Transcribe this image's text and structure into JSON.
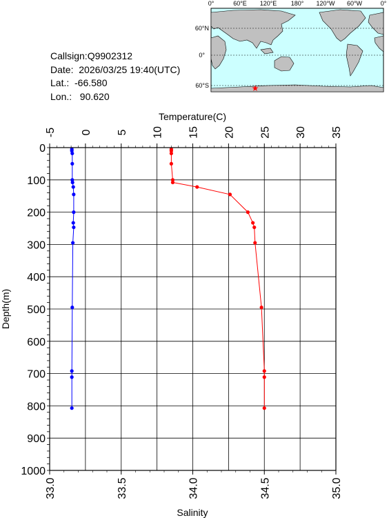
{
  "info": {
    "callsign": "Callsign:Q9902312",
    "date": "Date:  2026/03/25 19:40(UTC)",
    "lat": "Lat.:  -66.580",
    "lon": "Lon.:   90.620"
  },
  "map": {
    "lon_ticks": [
      "0°",
      "60°E",
      "120°E",
      "180°",
      "120°W",
      "60°W",
      "0°"
    ],
    "lat_ticks": [
      "60°N",
      "0°",
      "60°S"
    ],
    "ocean_color": "#ccffff",
    "land_color": "#c0c0c0",
    "marker": {
      "lon": 90.62,
      "lat": -66.58,
      "color": "#ff0000",
      "icon": "star-icon"
    }
  },
  "chart_data": {
    "type": "line",
    "ylabel": "Depth(m)",
    "y_range": [
      0,
      1000
    ],
    "y_ticks": [
      0,
      100,
      200,
      300,
      400,
      500,
      600,
      700,
      800,
      900,
      1000
    ],
    "y_reversed": true,
    "grid": true,
    "top_axis": {
      "label": "Temperature(C)",
      "range": [
        -5,
        35
      ],
      "ticks": [
        "-5",
        "0",
        "5",
        "10",
        "15",
        "20",
        "25",
        "30",
        "35"
      ]
    },
    "bottom_axis": {
      "label": "Salinity",
      "range": [
        33.0,
        35.0
      ],
      "ticks": [
        "33.0",
        "33.5",
        "34.0",
        "34.5",
        "35.0"
      ]
    },
    "series": [
      {
        "quantity": "Temperature",
        "axis": "top",
        "color": "#ff0000",
        "points": [
          [
            12.0,
            5
          ],
          [
            12.0,
            10
          ],
          [
            12.0,
            18
          ],
          [
            12.0,
            50
          ],
          [
            12.2,
            100
          ],
          [
            12.2,
            108
          ],
          [
            15.6,
            122
          ],
          [
            20.2,
            145
          ],
          [
            22.7,
            200
          ],
          [
            23.4,
            233
          ],
          [
            23.6,
            247
          ],
          [
            23.7,
            295
          ],
          [
            24.6,
            495
          ],
          [
            25.0,
            692
          ],
          [
            25.0,
            711
          ],
          [
            25.0,
            807
          ]
        ]
      },
      {
        "quantity": "Salinity",
        "axis": "bottom",
        "color": "#0000ff",
        "points": [
          [
            33.155,
            5
          ],
          [
            33.155,
            10
          ],
          [
            33.158,
            18
          ],
          [
            33.158,
            50
          ],
          [
            33.158,
            100
          ],
          [
            33.16,
            108
          ],
          [
            33.165,
            122
          ],
          [
            33.168,
            145
          ],
          [
            33.168,
            200
          ],
          [
            33.165,
            233
          ],
          [
            33.168,
            247
          ],
          [
            33.162,
            295
          ],
          [
            33.158,
            495
          ],
          [
            33.155,
            692
          ],
          [
            33.155,
            711
          ],
          [
            33.155,
            807
          ]
        ]
      }
    ]
  }
}
